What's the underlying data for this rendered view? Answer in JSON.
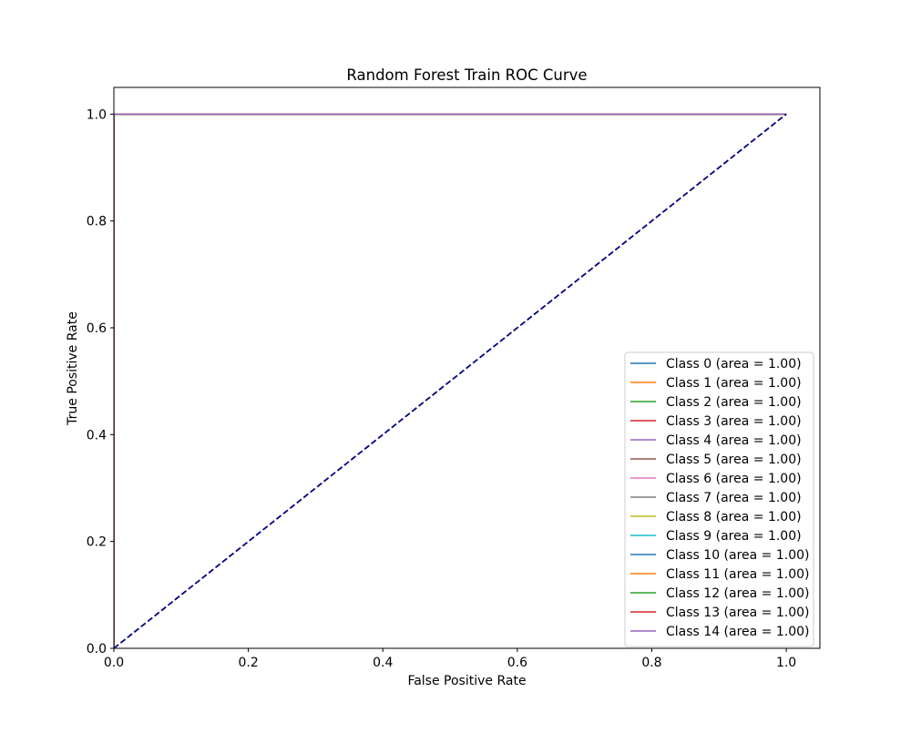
{
  "chart_data": {
    "type": "line",
    "title": "Random Forest Train ROC Curve",
    "xlabel": "False Positive Rate",
    "ylabel": "True Positive Rate",
    "xlim": [
      0.0,
      1.05
    ],
    "ylim": [
      0.0,
      1.05
    ],
    "x_ticks": [
      "0.0",
      "0.2",
      "0.4",
      "0.6",
      "0.8",
      "1.0"
    ],
    "y_ticks": [
      "0.0",
      "0.2",
      "0.4",
      "0.6",
      "0.8",
      "1.0"
    ],
    "grid": false,
    "legend_position": "lower right",
    "series": [
      {
        "name": "Class 0 (area = 1.00)",
        "color": "#1f77b4",
        "x": [
          0.0,
          0.0,
          1.0
        ],
        "y": [
          0.0,
          1.0,
          1.0
        ]
      },
      {
        "name": "Class 1 (area = 1.00)",
        "color": "#ff7f0e",
        "x": [
          0.0,
          0.0,
          1.0
        ],
        "y": [
          0.0,
          1.0,
          1.0
        ]
      },
      {
        "name": "Class 2 (area = 1.00)",
        "color": "#2ca02c",
        "x": [
          0.0,
          0.0,
          1.0
        ],
        "y": [
          0.0,
          1.0,
          1.0
        ]
      },
      {
        "name": "Class 3 (area = 1.00)",
        "color": "#d62728",
        "x": [
          0.0,
          0.0,
          1.0
        ],
        "y": [
          0.0,
          1.0,
          1.0
        ]
      },
      {
        "name": "Class 4 (area = 1.00)",
        "color": "#9467bd",
        "x": [
          0.0,
          0.0,
          1.0
        ],
        "y": [
          0.0,
          1.0,
          1.0
        ]
      },
      {
        "name": "Class 5 (area = 1.00)",
        "color": "#8c564b",
        "x": [
          0.0,
          0.0,
          1.0
        ],
        "y": [
          0.0,
          1.0,
          1.0
        ]
      },
      {
        "name": "Class 6 (area = 1.00)",
        "color": "#e377c2",
        "x": [
          0.0,
          0.0,
          1.0
        ],
        "y": [
          0.0,
          1.0,
          1.0
        ]
      },
      {
        "name": "Class 7 (area = 1.00)",
        "color": "#7f7f7f",
        "x": [
          0.0,
          0.0,
          1.0
        ],
        "y": [
          0.0,
          1.0,
          1.0
        ]
      },
      {
        "name": "Class 8 (area = 1.00)",
        "color": "#bcbd22",
        "x": [
          0.0,
          0.0,
          1.0
        ],
        "y": [
          0.0,
          1.0,
          1.0
        ]
      },
      {
        "name": "Class 9 (area = 1.00)",
        "color": "#17becf",
        "x": [
          0.0,
          0.0,
          1.0
        ],
        "y": [
          0.0,
          1.0,
          1.0
        ]
      },
      {
        "name": "Class 10 (area = 1.00)",
        "color": "#1f77b4",
        "x": [
          0.0,
          0.0,
          1.0
        ],
        "y": [
          0.0,
          1.0,
          1.0
        ]
      },
      {
        "name": "Class 11 (area = 1.00)",
        "color": "#ff7f0e",
        "x": [
          0.0,
          0.0,
          1.0
        ],
        "y": [
          0.0,
          1.0,
          1.0
        ]
      },
      {
        "name": "Class 12 (area = 1.00)",
        "color": "#2ca02c",
        "x": [
          0.0,
          0.0,
          1.0
        ],
        "y": [
          0.0,
          1.0,
          1.0
        ]
      },
      {
        "name": "Class 13 (area = 1.00)",
        "color": "#d62728",
        "x": [
          0.0,
          0.0,
          1.0
        ],
        "y": [
          0.0,
          1.0,
          1.0
        ]
      },
      {
        "name": "Class 14 (area = 1.00)",
        "color": "#9467bd",
        "x": [
          0.0,
          0.0,
          1.0
        ],
        "y": [
          0.0,
          1.0,
          1.0
        ]
      }
    ],
    "reference_line": {
      "x": [
        0.0,
        1.0
      ],
      "y": [
        0.0,
        1.0
      ],
      "color": "#000080",
      "style": "dashed"
    }
  }
}
